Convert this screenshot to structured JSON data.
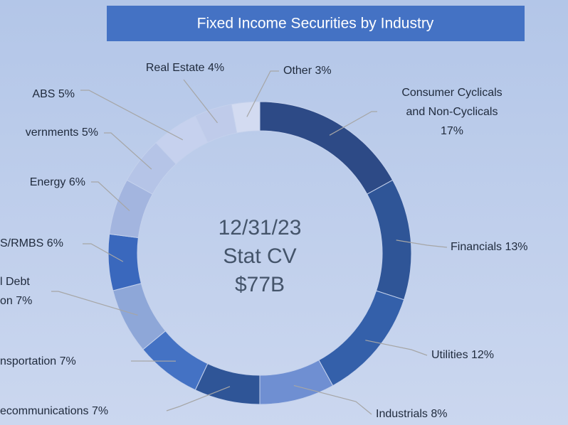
{
  "chart_data": {
    "type": "donut",
    "title": "Fixed Income Securities by Industry",
    "center_text": [
      "12/31/23",
      "Stat CV",
      "$77B"
    ],
    "values": [
      17,
      13,
      12,
      8,
      7,
      7,
      7,
      6,
      6,
      5,
      5,
      4,
      3
    ],
    "labels": [
      [
        "Consumer Cyclicals",
        "and Non-Cyclicals",
        "17%"
      ],
      [
        "Financials 13%"
      ],
      [
        "Utilities 12%"
      ],
      [
        "Industrials 8%"
      ],
      [
        "ecommunications 7%"
      ],
      [
        "nsportation 7%"
      ],
      [
        "l Debt",
        "on 7%"
      ],
      [
        "S/RMBS 6%"
      ],
      [
        "Energy 6%"
      ],
      [
        "vernments 5%"
      ],
      [
        "ABS 5%"
      ],
      [
        "Real Estate  4%"
      ],
      [
        "Other 3%"
      ]
    ],
    "colors": [
      "#2d4a86",
      "#2f5597",
      "#3460aa",
      "#6f8fd2",
      "#2f5597",
      "#4472c4",
      "#8ea7d8",
      "#3a68bd",
      "#a3b5df",
      "#b5c4e7",
      "#c6d1ee",
      "#bfcbea",
      "#d3dbf1"
    ]
  }
}
